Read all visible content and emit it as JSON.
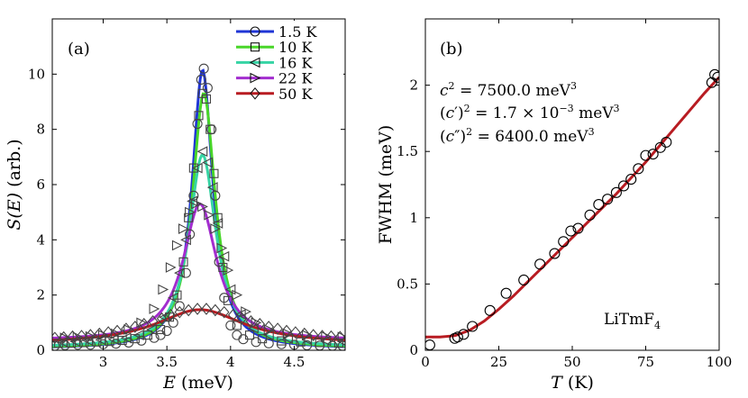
{
  "chart_data": [
    {
      "type": "line",
      "panel_label": "(a)",
      "xlabel_var": "E",
      "xlabel_unit": "(meV)",
      "ylabel_var": "S(E)",
      "ylabel_unit": "(arb.)",
      "xlim": [
        2.6,
        4.9
      ],
      "ylim": [
        0,
        12
      ],
      "xticks": [
        3,
        3.5,
        4,
        4.5
      ],
      "xtick_labels": [
        "3",
        "3.5",
        "4",
        "4.5"
      ],
      "yticks": [
        0,
        2,
        4,
        6,
        8,
        10
      ],
      "ytick_labels": [
        "0",
        "2",
        "4",
        "6",
        "8",
        "10"
      ],
      "legend_position": "top-right",
      "series": [
        {
          "name": "1.5 K",
          "color": "#1f35d6",
          "marker": "circle",
          "model": "lorentzian",
          "center": 3.78,
          "hwhm": 0.1,
          "amplitude": 10.1,
          "baseline": 0.05,
          "points": [
            [
              2.62,
              0.16
            ],
            [
              2.7,
              0.18
            ],
            [
              2.8,
              0.2
            ],
            [
              2.9,
              0.2
            ],
            [
              3.0,
              0.22
            ],
            [
              3.1,
              0.24
            ],
            [
              3.2,
              0.28
            ],
            [
              3.3,
              0.35
            ],
            [
              3.4,
              0.45
            ],
            [
              3.45,
              0.55
            ],
            [
              3.5,
              0.7
            ],
            [
              3.55,
              1.0
            ],
            [
              3.6,
              1.6
            ],
            [
              3.65,
              2.8
            ],
            [
              3.68,
              4.2
            ],
            [
              3.71,
              5.6
            ],
            [
              3.74,
              8.2
            ],
            [
              3.77,
              9.8
            ],
            [
              3.79,
              10.2
            ],
            [
              3.82,
              9.5
            ],
            [
              3.85,
              8.0
            ],
            [
              3.88,
              5.6
            ],
            [
              3.91,
              3.2
            ],
            [
              3.95,
              1.9
            ],
            [
              4.0,
              0.9
            ],
            [
              4.05,
              0.55
            ],
            [
              4.1,
              0.4
            ],
            [
              4.2,
              0.3
            ],
            [
              4.3,
              0.25
            ],
            [
              4.4,
              0.22
            ],
            [
              4.5,
              0.2
            ],
            [
              4.6,
              0.18
            ],
            [
              4.7,
              0.17
            ],
            [
              4.8,
              0.16
            ],
            [
              4.88,
              0.16
            ]
          ]
        },
        {
          "name": "10 K",
          "color": "#49d629",
          "marker": "square",
          "model": "lorentzian",
          "center": 3.79,
          "hwhm": 0.11,
          "amplitude": 9.25,
          "baseline": 0.06,
          "points": [
            [
              2.65,
              0.25
            ],
            [
              2.75,
              0.26
            ],
            [
              2.85,
              0.28
            ],
            [
              2.95,
              0.3
            ],
            [
              3.05,
              0.32
            ],
            [
              3.15,
              0.36
            ],
            [
              3.25,
              0.42
            ],
            [
              3.35,
              0.55
            ],
            [
              3.45,
              0.75
            ],
            [
              3.52,
              1.2
            ],
            [
              3.58,
              2.0
            ],
            [
              3.63,
              3.2
            ],
            [
              3.67,
              4.8
            ],
            [
              3.71,
              6.6
            ],
            [
              3.75,
              8.5
            ],
            [
              3.78,
              9.3
            ],
            [
              3.81,
              9.1
            ],
            [
              3.84,
              8.0
            ],
            [
              3.87,
              6.4
            ],
            [
              3.9,
              4.8
            ],
            [
              3.94,
              3.0
            ],
            [
              3.98,
              1.8
            ],
            [
              4.05,
              0.9
            ],
            [
              4.15,
              0.55
            ],
            [
              4.25,
              0.42
            ],
            [
              4.4,
              0.34
            ],
            [
              4.55,
              0.3
            ],
            [
              4.7,
              0.28
            ],
            [
              4.85,
              0.26
            ]
          ]
        },
        {
          "name": "16 K",
          "color": "#36d4a4",
          "marker": "triangle-left",
          "model": "lorentzian",
          "center": 3.78,
          "hwhm": 0.13,
          "amplitude": 6.98,
          "baseline": 0.1,
          "points": [
            [
              2.68,
              0.3
            ],
            [
              2.78,
              0.32
            ],
            [
              2.88,
              0.35
            ],
            [
              2.98,
              0.38
            ],
            [
              3.08,
              0.4
            ],
            [
              3.18,
              0.45
            ],
            [
              3.28,
              0.55
            ],
            [
              3.38,
              0.75
            ],
            [
              3.48,
              1.2
            ],
            [
              3.55,
              1.9
            ],
            [
              3.6,
              2.8
            ],
            [
              3.65,
              4.0
            ],
            [
              3.7,
              5.4
            ],
            [
              3.74,
              6.6
            ],
            [
              3.78,
              7.2
            ],
            [
              3.82,
              6.8
            ],
            [
              3.86,
              5.9
            ],
            [
              3.9,
              4.6
            ],
            [
              3.95,
              3.4
            ],
            [
              4.0,
              2.2
            ],
            [
              4.08,
              1.3
            ],
            [
              4.18,
              0.8
            ],
            [
              4.3,
              0.55
            ],
            [
              4.45,
              0.42
            ],
            [
              4.6,
              0.38
            ],
            [
              4.75,
              0.34
            ],
            [
              4.88,
              0.32
            ]
          ]
        },
        {
          "name": "22 K",
          "color": "#a32dcf",
          "marker": "triangle-right",
          "model": "lorentzian",
          "center": 3.76,
          "hwhm": 0.16,
          "amplitude": 4.95,
          "baseline": 0.35,
          "points": [
            [
              2.7,
              0.45
            ],
            [
              2.8,
              0.48
            ],
            [
              2.9,
              0.5
            ],
            [
              3.0,
              0.55
            ],
            [
              3.1,
              0.6
            ],
            [
              3.2,
              0.75
            ],
            [
              3.3,
              1.0
            ],
            [
              3.4,
              1.5
            ],
            [
              3.47,
              2.2
            ],
            [
              3.53,
              3.0
            ],
            [
              3.58,
              3.8
            ],
            [
              3.63,
              4.4
            ],
            [
              3.68,
              5.0
            ],
            [
              3.73,
              5.3
            ],
            [
              3.78,
              5.2
            ],
            [
              3.83,
              4.9
            ],
            [
              3.88,
              4.4
            ],
            [
              3.93,
              3.7
            ],
            [
              3.98,
              2.9
            ],
            [
              4.05,
              2.0
            ],
            [
              4.12,
              1.4
            ],
            [
              4.2,
              1.0
            ],
            [
              4.3,
              0.75
            ],
            [
              4.45,
              0.6
            ],
            [
              4.6,
              0.55
            ],
            [
              4.75,
              0.5
            ],
            [
              4.88,
              0.48
            ]
          ]
        },
        {
          "name": "50 K",
          "color": "#b81c22",
          "marker": "diamond",
          "model": "lorentzian",
          "center": 3.76,
          "hwhm": 0.42,
          "amplitude": 1.25,
          "baseline": 0.22,
          "points": [
            [
              2.62,
              0.45
            ],
            [
              2.69,
              0.47
            ],
            [
              2.76,
              0.5
            ],
            [
              2.83,
              0.52
            ],
            [
              2.9,
              0.55
            ],
            [
              2.97,
              0.6
            ],
            [
              3.04,
              0.65
            ],
            [
              3.11,
              0.7
            ],
            [
              3.18,
              0.78
            ],
            [
              3.25,
              0.85
            ],
            [
              3.32,
              0.95
            ],
            [
              3.39,
              1.05
            ],
            [
              3.46,
              1.15
            ],
            [
              3.53,
              1.28
            ],
            [
              3.6,
              1.38
            ],
            [
              3.67,
              1.45
            ],
            [
              3.74,
              1.5
            ],
            [
              3.81,
              1.5
            ],
            [
              3.88,
              1.45
            ],
            [
              3.95,
              1.38
            ],
            [
              4.02,
              1.28
            ],
            [
              4.09,
              1.15
            ],
            [
              4.16,
              1.05
            ],
            [
              4.23,
              0.95
            ],
            [
              4.3,
              0.85
            ],
            [
              4.37,
              0.78
            ],
            [
              4.44,
              0.7
            ],
            [
              4.51,
              0.65
            ],
            [
              4.58,
              0.6
            ],
            [
              4.65,
              0.55
            ],
            [
              4.72,
              0.52
            ],
            [
              4.79,
              0.5
            ],
            [
              4.86,
              0.48
            ]
          ]
        }
      ]
    },
    {
      "type": "scatter",
      "panel_label": "(b)",
      "xlabel_var": "T",
      "xlabel_unit": "(K)",
      "ylabel": "FWHM (meV)",
      "xlim": [
        0,
        100
      ],
      "ylim": [
        0,
        2.5
      ],
      "xticks": [
        0,
        25,
        50,
        75,
        100
      ],
      "xtick_labels": [
        "0",
        "25",
        "50",
        "75",
        "100"
      ],
      "yticks": [
        0,
        0.5,
        1,
        1.5,
        2
      ],
      "ytick_labels": [
        "0",
        "0.5",
        "1",
        "1.5",
        "2"
      ],
      "annotations": [
        "= 7500.0 meV",
        "= 1.7 × 10",
        "= 6400.0 meV"
      ],
      "material": "LiTmF",
      "data_color": "#000000",
      "fit_color": "#b81c22",
      "data": {
        "x": [
          1.5,
          10,
          11,
          13,
          16,
          22,
          27.5,
          33.5,
          39,
          44,
          47,
          49.5,
          52,
          56,
          59,
          62,
          65,
          67.5,
          70,
          72.5,
          75,
          77.5,
          80,
          82,
          97.5,
          98.5,
          99.5
        ],
        "y": [
          0.04,
          0.09,
          0.1,
          0.12,
          0.18,
          0.3,
          0.43,
          0.53,
          0.65,
          0.73,
          0.82,
          0.9,
          0.92,
          1.02,
          1.1,
          1.14,
          1.19,
          1.24,
          1.29,
          1.37,
          1.47,
          1.48,
          1.53,
          1.57,
          2.02,
          2.08,
          2.06
        ]
      },
      "fit": {
        "x": [
          0,
          5,
          10,
          15,
          20,
          25,
          30,
          35,
          40,
          45,
          50,
          55,
          60,
          65,
          70,
          75,
          80,
          85,
          90,
          95,
          100
        ],
        "y": [
          0.1,
          0.1,
          0.11,
          0.15,
          0.22,
          0.31,
          0.41,
          0.52,
          0.63,
          0.74,
          0.85,
          0.96,
          1.07,
          1.18,
          1.3,
          1.42,
          1.55,
          1.68,
          1.81,
          1.94,
          2.06
        ]
      }
    }
  ]
}
